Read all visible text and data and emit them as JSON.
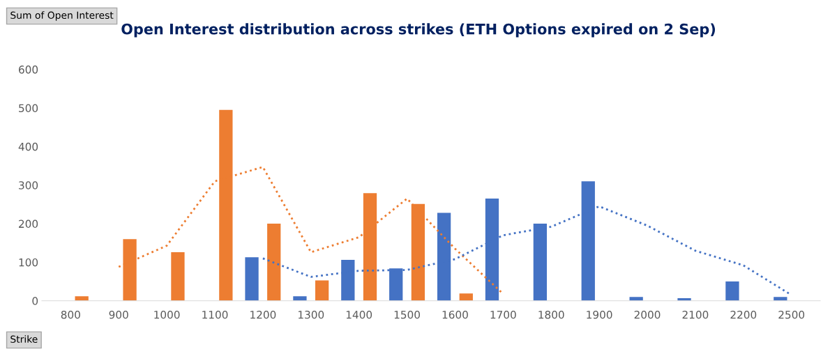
{
  "chart_data": {
    "type": "bar",
    "title": "Open Interest distribution across strikes (ETH Options expired on 2 Sep)",
    "categories": [
      "800",
      "900",
      "1000",
      "1100",
      "1200",
      "1300",
      "1400",
      "1500",
      "1600",
      "1700",
      "1800",
      "1900",
      "2000",
      "2100",
      "2200",
      "2500"
    ],
    "series": [
      {
        "color": "#4472c4",
        "values": [
          null,
          null,
          null,
          null,
          113,
          12,
          106,
          84,
          228,
          265,
          200,
          310,
          10,
          7,
          50,
          10
        ]
      },
      {
        "color": "#ed7d31",
        "values": [
          12,
          160,
          126,
          495,
          200,
          53,
          279,
          251,
          19,
          null,
          null,
          null,
          null,
          null,
          null,
          null
        ]
      },
      {
        "type": "line",
        "line_style": "dotted",
        "color": "#ed7d31",
        "values": [
          null,
          88,
          143,
          310,
          347,
          126,
          165,
          265,
          135,
          18,
          null,
          null,
          null,
          null,
          null,
          null
        ]
      },
      {
        "type": "line",
        "line_style": "dotted",
        "color": "#4472c4",
        "values": [
          null,
          null,
          null,
          null,
          110,
          62,
          78,
          80,
          108,
          170,
          192,
          245,
          195,
          130,
          92,
          15
        ]
      }
    ],
    "ylim": [
      0,
      600
    ],
    "yticks": [
      0,
      100,
      200,
      300,
      400,
      500,
      600
    ],
    "grid": false,
    "legend": false,
    "annotations": [
      "Sum of Open Interest",
      "Strike"
    ]
  }
}
